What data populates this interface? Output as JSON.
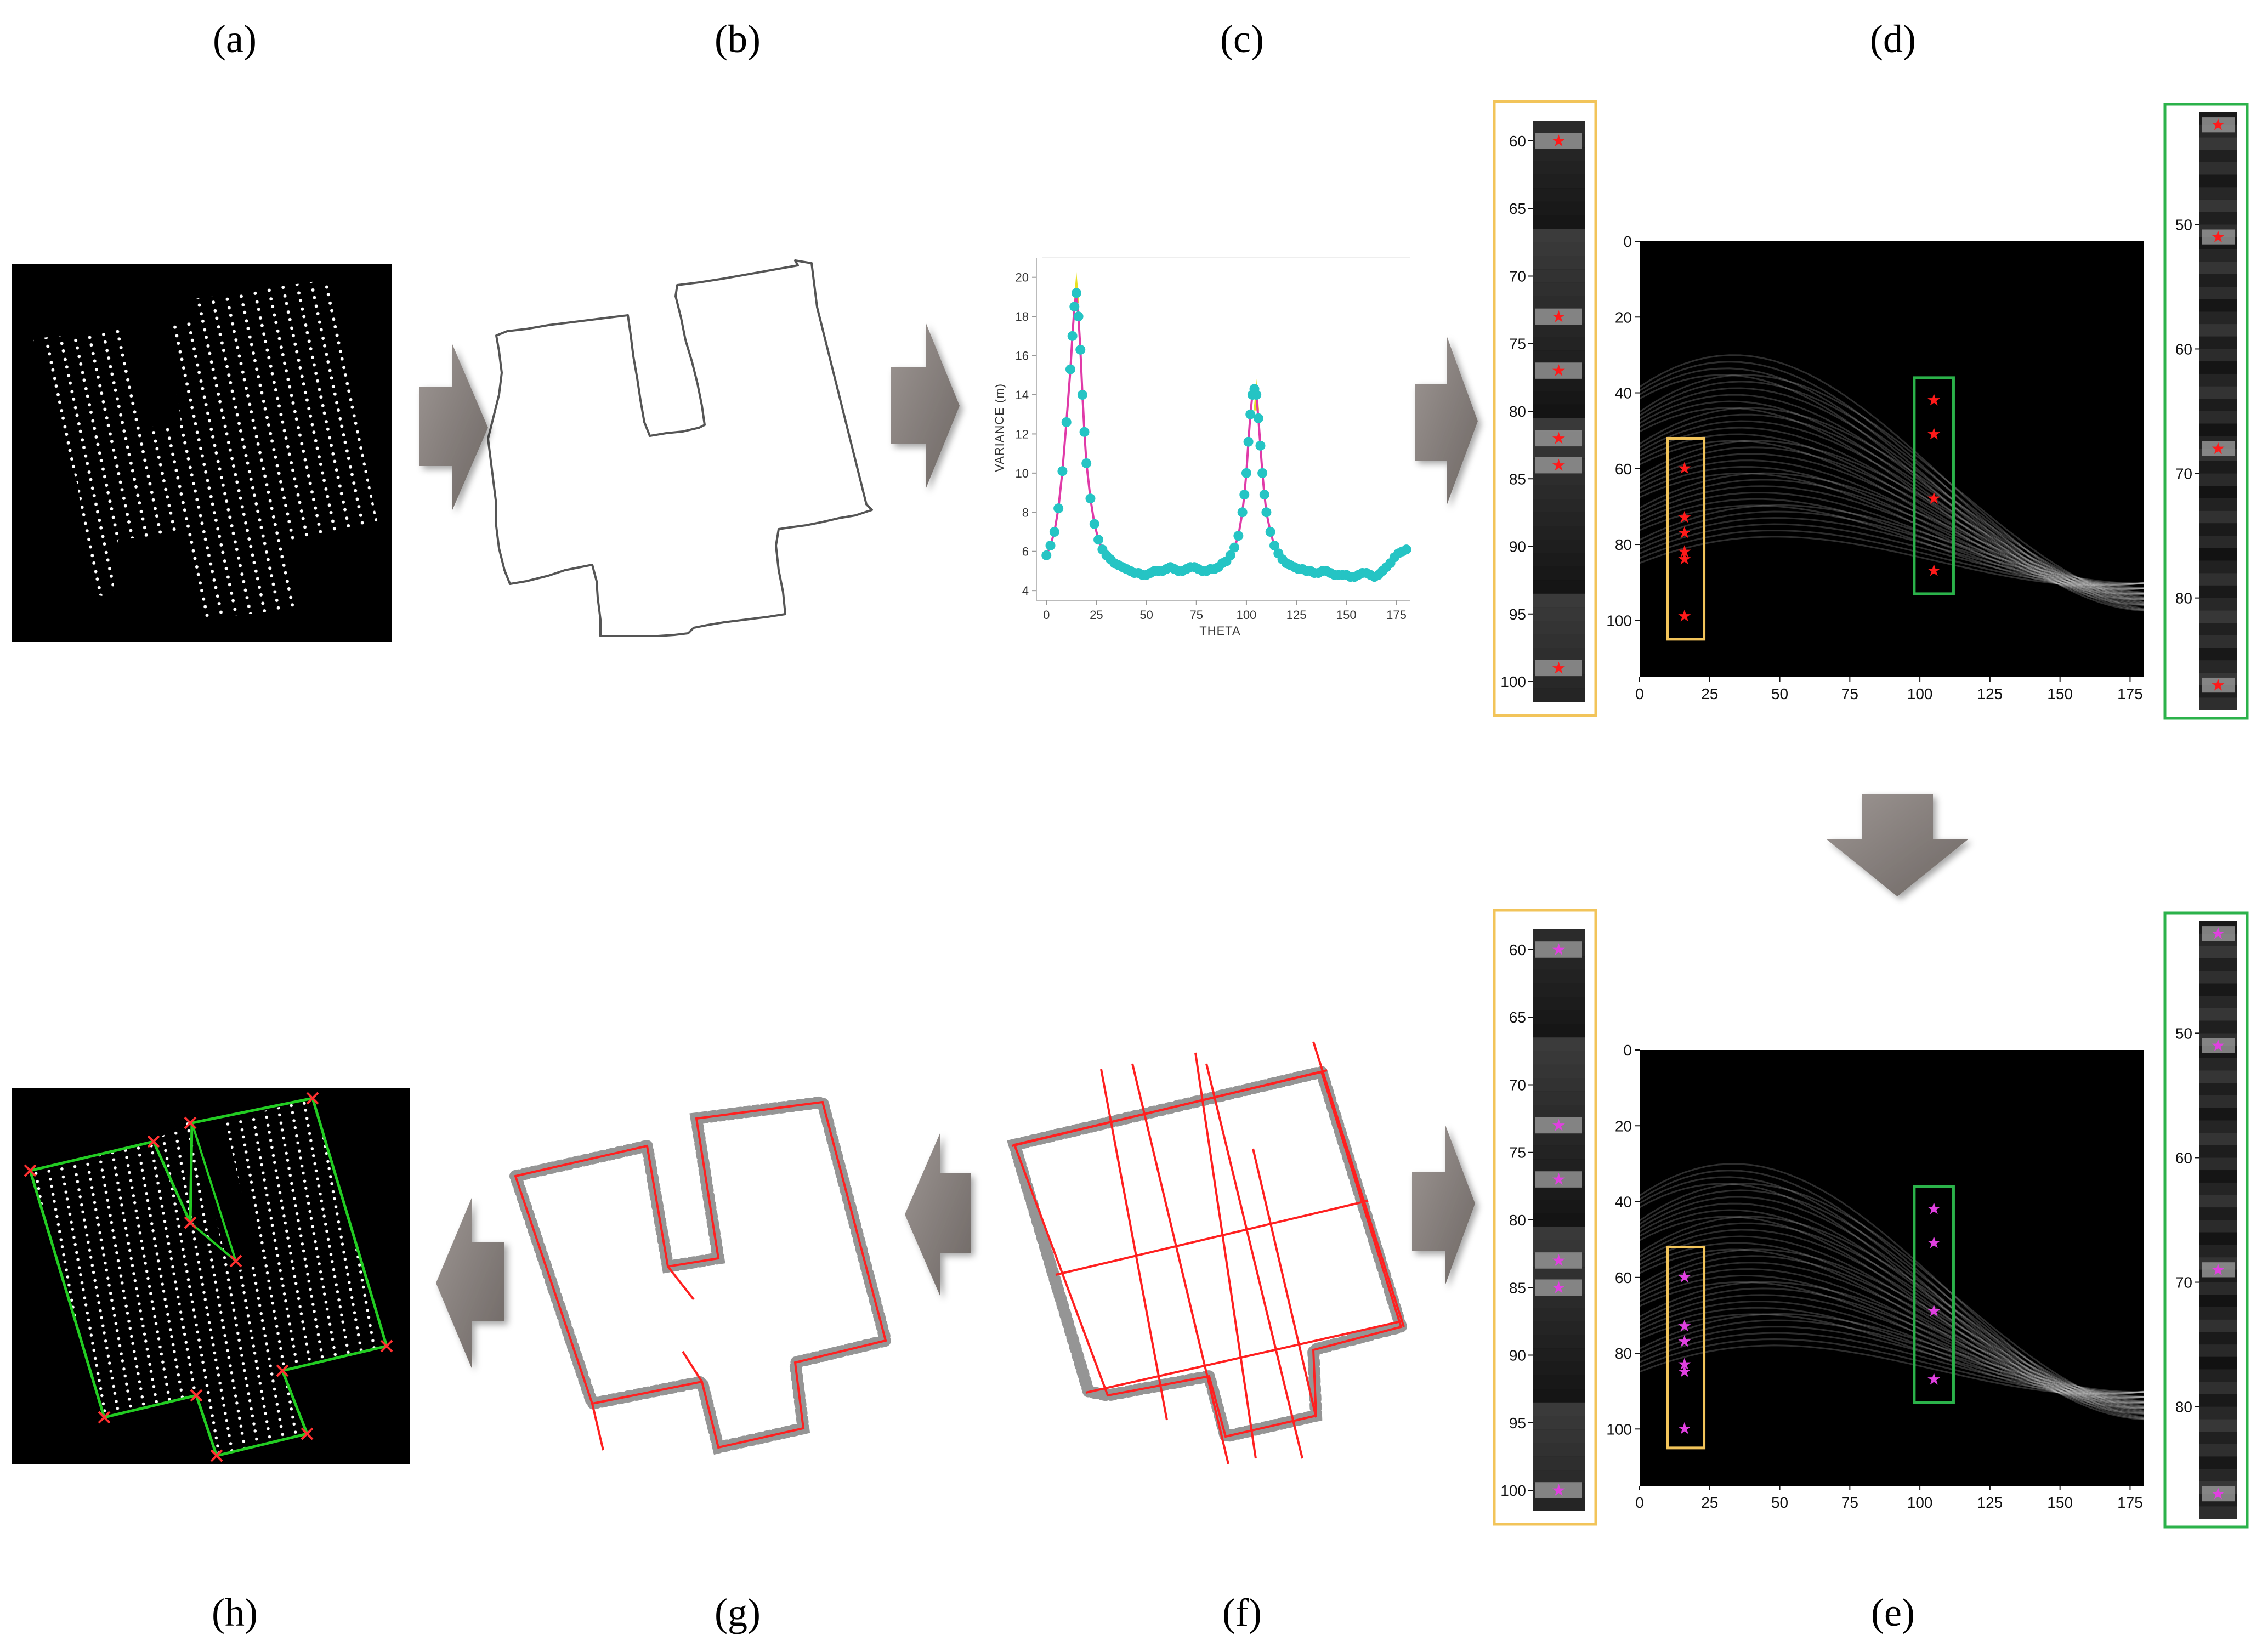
{
  "panels": {
    "a": {
      "label": "(a)"
    },
    "b": {
      "label": "(b)"
    },
    "c": {
      "label": "(c)"
    },
    "d": {
      "label": "(d)"
    },
    "e": {
      "label": "(e)"
    },
    "f": {
      "label": "(f)"
    },
    "g": {
      "label": "(g)"
    },
    "h": {
      "label": "(h)"
    }
  },
  "colors": {
    "arrow": "#8a8380",
    "outline": "#555555",
    "scatter": "#25c4c4",
    "fit_line": "#e03aa8",
    "peak_marker": "#e8e020",
    "hough_star_d": "#ff1a1a",
    "hough_star_e": "#e040e0",
    "zoom_box_left": "#f2c45a",
    "zoom_box_right": "#2bb24a",
    "edge_line": "#ff2020",
    "boundary_green": "#22cc22"
  },
  "chart_data": [
    {
      "type": "scatter",
      "panel": "c",
      "xlabel": "THETA",
      "ylabel": "VARIANCE (m)",
      "xlim": [
        -5,
        182
      ],
      "ylim": [
        3.5,
        21
      ],
      "xticks": [
        0,
        25,
        50,
        75,
        100,
        125,
        150,
        175
      ],
      "yticks": [
        4,
        6,
        8,
        10,
        12,
        14,
        16,
        18,
        20
      ],
      "peaks": [
        {
          "theta": 15,
          "variance": 20.3
        },
        {
          "theta": 105,
          "variance": 14.8
        }
      ],
      "series": [
        {
          "values_x": [
            0,
            2,
            4,
            6,
            8,
            10,
            12,
            13,
            14,
            15,
            16,
            17,
            18,
            19,
            20,
            22,
            24,
            26,
            28,
            30,
            32,
            34,
            36,
            38,
            40,
            42,
            44,
            46,
            48,
            50,
            52,
            54,
            56,
            58,
            60,
            62,
            64,
            66,
            68,
            70,
            72,
            74,
            76,
            78,
            80,
            82,
            84,
            86,
            88,
            90,
            92,
            94,
            96,
            98,
            99,
            100,
            101,
            102,
            103,
            104,
            105,
            106,
            107,
            108,
            109,
            110,
            112,
            114,
            116,
            118,
            120,
            122,
            124,
            126,
            128,
            130,
            132,
            134,
            136,
            138,
            140,
            142,
            144,
            146,
            148,
            150,
            152,
            154,
            156,
            158,
            160,
            162,
            164,
            166,
            168,
            170,
            172,
            174,
            176,
            178,
            180
          ],
          "values_y": [
            5.8,
            6.3,
            7.0,
            8.2,
            10.1,
            12.6,
            15.3,
            17.0,
            18.5,
            19.2,
            18.0,
            16.3,
            14.0,
            12.1,
            10.5,
            8.7,
            7.4,
            6.6,
            6.1,
            5.8,
            5.6,
            5.4,
            5.3,
            5.2,
            5.1,
            5.0,
            4.9,
            4.9,
            4.8,
            4.8,
            4.9,
            5.0,
            5.0,
            5.0,
            5.1,
            5.2,
            5.1,
            5.0,
            5.0,
            5.1,
            5.2,
            5.2,
            5.1,
            5.0,
            5.0,
            5.1,
            5.1,
            5.2,
            5.4,
            5.5,
            5.8,
            6.2,
            6.8,
            8.0,
            8.9,
            10.0,
            11.6,
            13.0,
            14.0,
            14.3,
            14.0,
            12.8,
            11.4,
            10.0,
            8.9,
            8.0,
            7.0,
            6.3,
            5.9,
            5.6,
            5.4,
            5.3,
            5.2,
            5.1,
            5.1,
            5.0,
            5.0,
            4.9,
            4.9,
            5.0,
            5.0,
            4.9,
            4.8,
            4.8,
            4.8,
            4.8,
            4.7,
            4.7,
            4.8,
            4.9,
            4.9,
            4.8,
            4.7,
            4.8,
            5.0,
            5.2,
            5.4,
            5.7,
            5.9,
            6.0,
            6.1
          ]
        }
      ]
    },
    {
      "type": "heatmap",
      "panel": "d",
      "xticks": [
        0,
        25,
        50,
        75,
        100,
        125,
        150,
        175
      ],
      "yticks": [
        0,
        20,
        40,
        60,
        80,
        100
      ],
      "xlim": [
        0,
        180
      ],
      "ylim": [
        0,
        115
      ],
      "peaks": [
        {
          "theta": 16,
          "rho": 60
        },
        {
          "theta": 16,
          "rho": 73
        },
        {
          "theta": 16,
          "rho": 77
        },
        {
          "theta": 16,
          "rho": 82
        },
        {
          "theta": 16,
          "rho": 84
        },
        {
          "theta": 16,
          "rho": 99
        },
        {
          "theta": 105,
          "rho": 42
        },
        {
          "theta": 105,
          "rho": 51
        },
        {
          "theta": 105,
          "rho": 68
        },
        {
          "theta": 105,
          "rho": 87
        }
      ],
      "zoom_left": {
        "yticks": [
          60,
          65,
          70,
          75,
          80,
          85,
          90,
          95,
          100
        ]
      },
      "zoom_right": {
        "yticks": [
          50,
          60,
          70,
          80
        ]
      }
    },
    {
      "type": "heatmap",
      "panel": "e",
      "xticks": [
        0,
        25,
        50,
        75,
        100,
        125,
        150,
        175
      ],
      "yticks": [
        0,
        20,
        40,
        60,
        80,
        100
      ],
      "xlim": [
        0,
        180
      ],
      "ylim": [
        0,
        115
      ],
      "peaks": [
        {
          "theta": 16,
          "rho": 60
        },
        {
          "theta": 16,
          "rho": 73
        },
        {
          "theta": 16,
          "rho": 77
        },
        {
          "theta": 16,
          "rho": 83
        },
        {
          "theta": 16,
          "rho": 85
        },
        {
          "theta": 16,
          "rho": 100
        },
        {
          "theta": 105,
          "rho": 42
        },
        {
          "theta": 105,
          "rho": 51
        },
        {
          "theta": 105,
          "rho": 69
        },
        {
          "theta": 105,
          "rho": 87
        }
      ],
      "zoom_left": {
        "yticks": [
          60,
          65,
          70,
          75,
          80,
          85,
          90,
          95,
          100
        ]
      },
      "zoom_right": {
        "yticks": [
          50,
          60,
          70,
          80
        ]
      }
    }
  ]
}
